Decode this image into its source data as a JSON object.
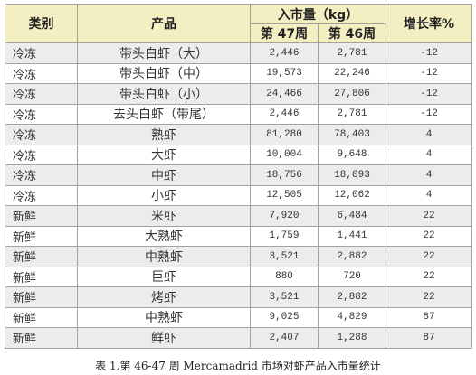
{
  "table": {
    "headers": {
      "category": "类别",
      "product": "产品",
      "volume_group": "入市量（kg）",
      "week47": "第 47周",
      "week46": "第 46周",
      "growth": "增长率%"
    },
    "rows": [
      {
        "category": "冷冻",
        "product": "带头白虾（大）",
        "w47": "2,446",
        "w46": "2,781",
        "growth": "-12"
      },
      {
        "category": "冷冻",
        "product": "带头白虾（中）",
        "w47": "19,573",
        "w46": "22,246",
        "growth": "-12"
      },
      {
        "category": "冷冻",
        "product": "带头白虾（小）",
        "w47": "24,466",
        "w46": "27,806",
        "growth": "-12"
      },
      {
        "category": "冷冻",
        "product": "去头白虾（带尾）",
        "w47": "2,446",
        "w46": "2,781",
        "growth": "-12"
      },
      {
        "category": "冷冻",
        "product": "熟虾",
        "w47": "81,280",
        "w46": "78,403",
        "growth": "4"
      },
      {
        "category": "冷冻",
        "product": "大虾",
        "w47": "10,004",
        "w46": "9,648",
        "growth": "4"
      },
      {
        "category": "冷冻",
        "product": "中虾",
        "w47": "18,756",
        "w46": "18,093",
        "growth": "4"
      },
      {
        "category": "冷冻",
        "product": "小虾",
        "w47": "12,505",
        "w46": "12,062",
        "growth": "4"
      },
      {
        "category": "新鲜",
        "product": "米虾",
        "w47": "7,920",
        "w46": "6,484",
        "growth": "22"
      },
      {
        "category": "新鲜",
        "product": "大熟虾",
        "w47": "1,759",
        "w46": "1,441",
        "growth": "22"
      },
      {
        "category": "新鲜",
        "product": "中熟虾",
        "w47": "3,521",
        "w46": "2,882",
        "growth": "22"
      },
      {
        "category": "新鲜",
        "product": "巨虾",
        "w47": "880",
        "w46": "720",
        "growth": "22"
      },
      {
        "category": "新鲜",
        "product": "烤虾",
        "w47": "3,521",
        "w46": "2,882",
        "growth": "22"
      },
      {
        "category": "新鲜",
        "product": "中熟虾",
        "w47": "9,025",
        "w46": "4,829",
        "growth": "87"
      },
      {
        "category": "新鲜",
        "product": "鲜虾",
        "w47": "2,407",
        "w46": "1,288",
        "growth": "87"
      }
    ]
  },
  "caption": "表 1.第 46-47 周 Mercamadrid 市场对虾产品入市量统计"
}
